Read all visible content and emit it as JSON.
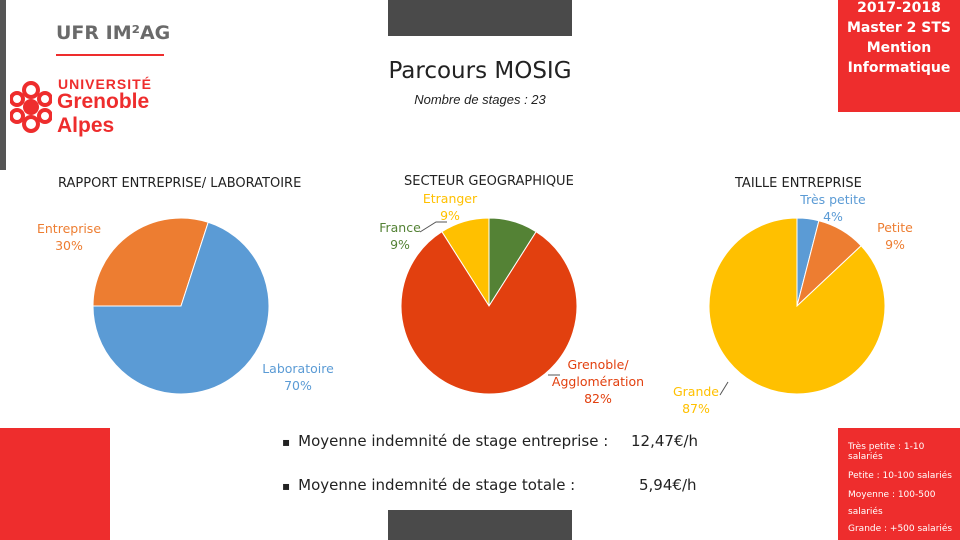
{
  "header": {
    "year": "2017-2018",
    "program": "Master 2 STS",
    "mention": "Mention",
    "field": "Informatique"
  },
  "logo": {
    "ufr": "UFR IM²AG",
    "univ1": "UNIVERSITÉ",
    "univ2": "Grenoble",
    "univ3": "Alpes"
  },
  "title": "Parcours MOSIG",
  "subtitle": "Nombre de stages : 23",
  "colors": {
    "red_panel": "#ee2d2d",
    "dark_bar": "#4a4a4a",
    "blue": "#5b9bd5",
    "orange": "#ed7d31",
    "red_orange": "#e2400f",
    "green": "#548235",
    "yellow": "#ffc000"
  },
  "chart_data": [
    {
      "type": "pie",
      "title": "RAPPORT ENTREPRISE/ LABORATOIRE",
      "categories": [
        "Entreprise",
        "Laboratoire"
      ],
      "values": [
        30,
        70
      ],
      "labels": [
        "30%",
        "70%"
      ]
    },
    {
      "type": "pie",
      "title": "SECTEUR GEOGRAPHIQUE",
      "categories": [
        "Etranger",
        "France",
        "Grenoble/ Agglomération"
      ],
      "values": [
        9,
        9,
        82
      ],
      "labels": [
        "9%",
        "9%",
        "82%"
      ]
    },
    {
      "type": "pie",
      "title": "TAILLE ENTREPRISE",
      "categories": [
        "Très petite",
        "Petite",
        "Grande"
      ],
      "values": [
        4,
        9,
        87
      ],
      "labels": [
        "4%",
        "9%",
        "87%"
      ]
    }
  ],
  "stats": {
    "line1_label": "Moyenne indemnité de stage entreprise :",
    "line1_value": "12,47€/h",
    "line2_label": "Moyenne indemnité de stage totale :",
    "line2_value": "5,94€/h",
    "bullet": "▪"
  },
  "size_legend": {
    "l1": "Très petite : 1-10 salariés",
    "l2": "Petite : 10-100 salariés",
    "l3": "Moyenne : 100-500",
    "l4": "salariés",
    "l5": "Grande : +500 salariés"
  }
}
